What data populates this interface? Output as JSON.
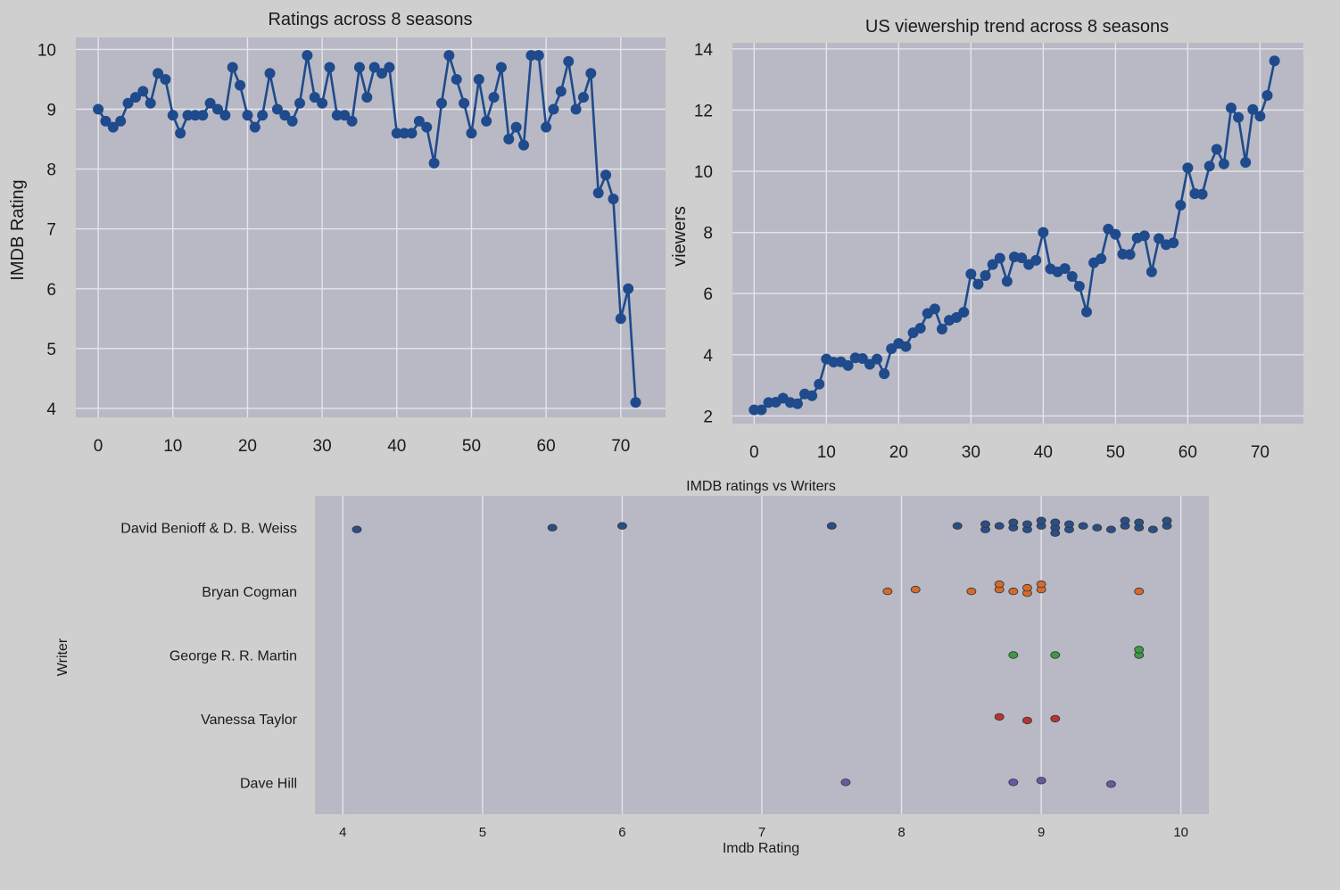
{
  "colors": {
    "figure_bg": "#cfcfcf",
    "plot_bg": "#b8b9c4",
    "grid": "#e4e4ea",
    "line": "#1f4a8c",
    "writers": [
      "#2a4f86",
      "#d46a2e",
      "#3d9a44",
      "#b8342f",
      "#6a57a6"
    ]
  },
  "chart_data": [
    {
      "type": "line",
      "title": "Ratings across 8 seasons",
      "xlabel": "",
      "ylabel": "IMDB Rating",
      "xlim": [
        -3,
        76
      ],
      "ylim": [
        3.85,
        10.2
      ],
      "xticks": [
        0,
        10,
        20,
        30,
        40,
        50,
        60,
        70
      ],
      "yticks": [
        4,
        5,
        6,
        7,
        8,
        9,
        10
      ],
      "grid": true,
      "series": [
        {
          "x": [
            0,
            1,
            2,
            3,
            4,
            5,
            6,
            7,
            8,
            9,
            10,
            11,
            12,
            13,
            14,
            15,
            16,
            17,
            18,
            19,
            20,
            21,
            22,
            23,
            24,
            25,
            26,
            27,
            28,
            29,
            30,
            31,
            32,
            33,
            34,
            35,
            36,
            37,
            38,
            39,
            40,
            41,
            42,
            43,
            44,
            45,
            46,
            47,
            48,
            49,
            50,
            51,
            52,
            53,
            54,
            55,
            56,
            57,
            58,
            59,
            60,
            61,
            62,
            63,
            64,
            65,
            66,
            67,
            68,
            69,
            70,
            71,
            72
          ],
          "values": [
            9.0,
            8.8,
            8.7,
            8.8,
            9.1,
            9.2,
            9.3,
            9.1,
            9.6,
            9.5,
            8.9,
            8.6,
            8.9,
            8.9,
            8.9,
            9.1,
            9.0,
            8.9,
            9.7,
            9.4,
            8.9,
            8.7,
            8.9,
            9.6,
            9.0,
            8.9,
            8.8,
            9.1,
            9.9,
            9.2,
            9.1,
            9.7,
            8.9,
            8.9,
            8.8,
            9.7,
            9.2,
            9.7,
            9.6,
            9.7,
            8.6,
            8.6,
            8.6,
            8.8,
            8.7,
            8.1,
            9.1,
            9.9,
            9.5,
            9.1,
            8.6,
            9.5,
            8.8,
            9.2,
            9.7,
            8.5,
            8.7,
            8.4,
            9.9,
            9.9,
            8.7,
            9.0,
            9.3,
            9.8,
            9.0,
            9.2,
            9.6,
            7.6,
            7.9,
            7.5,
            5.5,
            6.0,
            4.1
          ]
        }
      ]
    },
    {
      "type": "line",
      "title": "US viewership trend across 8 seasons",
      "xlabel": "",
      "ylabel": "viewers",
      "xlim": [
        -3,
        76
      ],
      "ylim": [
        1.75,
        14.2
      ],
      "xticks": [
        0,
        10,
        20,
        30,
        40,
        50,
        60,
        70
      ],
      "yticks": [
        2,
        4,
        6,
        8,
        10,
        12,
        14
      ],
      "grid": true,
      "series": [
        {
          "x": [
            0,
            1,
            2,
            3,
            4,
            5,
            6,
            7,
            8,
            9,
            10,
            11,
            12,
            13,
            14,
            15,
            16,
            17,
            18,
            19,
            20,
            21,
            22,
            23,
            24,
            25,
            26,
            27,
            28,
            29,
            30,
            31,
            32,
            33,
            34,
            35,
            36,
            37,
            38,
            39,
            40,
            41,
            42,
            43,
            44,
            45,
            46,
            47,
            48,
            49,
            50,
            51,
            52,
            53,
            54,
            55,
            56,
            57,
            58,
            59,
            60,
            61,
            62,
            63,
            64,
            65,
            66,
            67,
            68,
            69,
            70,
            71,
            72
          ],
          "values": [
            2.2,
            2.2,
            2.44,
            2.45,
            2.58,
            2.44,
            2.4,
            2.72,
            2.66,
            3.04,
            3.86,
            3.76,
            3.77,
            3.65,
            3.9,
            3.88,
            3.69,
            3.86,
            3.38,
            4.2,
            4.37,
            4.27,
            4.72,
            4.87,
            5.35,
            5.5,
            4.84,
            5.13,
            5.22,
            5.39,
            6.64,
            6.31,
            6.59,
            6.95,
            7.16,
            6.4,
            7.2,
            7.17,
            6.95,
            7.09,
            8.0,
            6.81,
            6.71,
            6.82,
            6.56,
            6.24,
            5.4,
            7.01,
            7.14,
            8.11,
            7.94,
            7.29,
            7.28,
            7.82,
            7.89,
            6.71,
            7.8,
            7.6,
            7.66,
            8.89,
            10.11,
            9.27,
            9.25,
            10.17,
            10.72,
            10.24,
            12.07,
            11.76,
            10.29,
            12.02,
            11.8,
            12.48,
            13.61
          ]
        }
      ]
    },
    {
      "type": "scatter",
      "title": "IMDB ratings vs Writers",
      "xlabel": "Imdb Rating",
      "ylabel": "Writer",
      "xlim": [
        3.8,
        10.2
      ],
      "xticks": [
        4,
        5,
        6,
        7,
        8,
        9,
        10
      ],
      "categories": [
        "David Benioff & D. B. Weiss",
        "Bryan Cogman",
        "George R. R. Martin",
        "Vanessa Taylor",
        "Dave Hill"
      ],
      "grid": true,
      "series": [
        {
          "values": [
            4.1,
            5.5,
            6.0,
            7.5,
            8.4,
            8.6,
            8.6,
            8.7,
            8.8,
            8.8,
            8.9,
            8.9,
            9.0,
            9.0,
            9.1,
            9.1,
            9.1,
            9.2,
            9.2,
            9.3,
            9.4,
            9.5,
            9.6,
            9.6,
            9.7,
            9.7,
            9.8,
            9.9,
            9.9
          ]
        },
        {
          "values": [
            7.9,
            8.1,
            8.5,
            8.7,
            8.7,
            8.8,
            8.9,
            8.9,
            9.0,
            9.0,
            9.7
          ]
        },
        {
          "values": [
            8.8,
            9.1,
            9.7,
            9.7
          ]
        },
        {
          "values": [
            8.7,
            8.9,
            9.1
          ]
        },
        {
          "values": [
            7.6,
            8.8,
            9.0,
            9.5
          ]
        }
      ]
    }
  ]
}
